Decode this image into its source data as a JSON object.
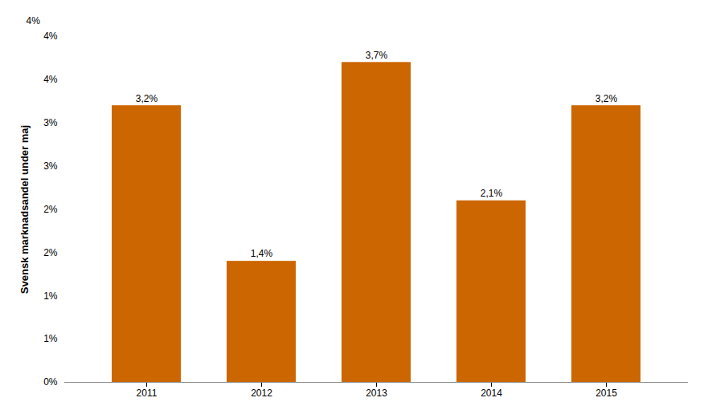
{
  "chart_data": {
    "type": "bar",
    "categories": [
      "2011",
      "2012",
      "2013",
      "2014",
      "2015"
    ],
    "values": [
      3.2,
      1.4,
      3.7,
      2.1,
      3.2
    ],
    "value_labels": [
      "3,2%",
      "1,4%",
      "3,7%",
      "2,1%",
      "3,2%"
    ],
    "data_labels": true,
    "color": "#CC6600",
    "ylabel": "Svensk marknadsandel under maj",
    "annotation": "4%",
    "ylim": [
      0,
      4.0
    ],
    "yticks": [
      {
        "value": 0.0,
        "label": "0%"
      },
      {
        "value": 0.5,
        "label": "1%"
      },
      {
        "value": 1.0,
        "label": "1%"
      },
      {
        "value": 1.5,
        "label": "2%"
      },
      {
        "value": 2.0,
        "label": "2%"
      },
      {
        "value": 2.5,
        "label": "3%"
      },
      {
        "value": 3.0,
        "label": "3%"
      },
      {
        "value": 3.5,
        "label": "4%"
      },
      {
        "value": 4.0,
        "label": "4%"
      }
    ],
    "grid": false
  }
}
